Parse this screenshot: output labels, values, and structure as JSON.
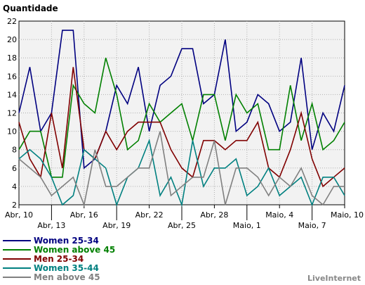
{
  "chart_data": {
    "type": "line",
    "title": "",
    "xlabel": "",
    "ylabel": "Quantidade",
    "ylim": [
      2,
      22
    ],
    "yticks": [
      2,
      4,
      6,
      8,
      10,
      12,
      14,
      16,
      18,
      20,
      22
    ],
    "x_count": 31,
    "x_ticks": [
      {
        "label": "Abr, 10",
        "index": 0,
        "row": 1
      },
      {
        "label": "Abr, 13",
        "index": 3,
        "row": 2
      },
      {
        "label": "Abr, 16",
        "index": 6,
        "row": 1
      },
      {
        "label": "Abr, 19",
        "index": 9,
        "row": 2
      },
      {
        "label": "Abr, 22",
        "index": 12,
        "row": 1
      },
      {
        "label": "Abr, 25",
        "index": 15,
        "row": 2
      },
      {
        "label": "Abr, 28",
        "index": 18,
        "row": 1
      },
      {
        "label": "Maio, 1",
        "index": 21,
        "row": 2
      },
      {
        "label": "Maio, 4",
        "index": 24,
        "row": 1
      },
      {
        "label": "Maio, 7",
        "index": 27,
        "row": 2
      },
      {
        "label": "Maio, 10",
        "index": 30,
        "row": 1
      }
    ],
    "grid": true,
    "legend_position": "bottom-left",
    "series": [
      {
        "name": "Women 25-34",
        "color": "#000080",
        "values": [
          12,
          17,
          10,
          12,
          21,
          21,
          6,
          7,
          10,
          15,
          13,
          17,
          10,
          15,
          16,
          19,
          19,
          13,
          14,
          20,
          10,
          11,
          14,
          13,
          10,
          11,
          18,
          8,
          12,
          10,
          15
        ]
      },
      {
        "name": "Women above 45",
        "color": "#008000",
        "values": [
          8,
          10,
          10,
          5,
          5,
          15,
          13,
          12,
          18,
          14,
          8,
          9,
          13,
          11,
          12,
          13,
          9,
          14,
          14,
          9,
          14,
          12,
          13,
          8,
          8,
          15,
          9,
          13,
          8,
          9,
          11
        ]
      },
      {
        "name": "Men 25-34",
        "color": "#800000",
        "values": [
          11,
          7,
          5,
          12,
          6,
          17,
          8,
          7,
          10,
          8,
          10,
          11,
          11,
          11,
          8,
          6,
          5,
          9,
          9,
          8,
          9,
          9,
          11,
          6,
          5,
          8,
          12,
          7,
          4,
          5,
          6
        ]
      },
      {
        "name": "Women 35-44",
        "color": "#008080",
        "values": [
          7,
          8,
          7,
          5,
          2,
          3,
          8,
          7,
          6,
          2,
          5,
          6,
          9,
          3,
          5,
          2,
          9,
          4,
          6,
          6,
          7,
          3,
          4,
          6,
          3,
          4,
          5,
          2,
          5,
          5,
          3
        ]
      },
      {
        "name": "Men above 45",
        "color": "#808080",
        "values": [
          7,
          6,
          5,
          3,
          4,
          5,
          2,
          8,
          4,
          4,
          5,
          6,
          6,
          10,
          3,
          4,
          5,
          5,
          9,
          2,
          6,
          6,
          5,
          3,
          5,
          4,
          6,
          3,
          2,
          4,
          4
        ]
      }
    ]
  },
  "footer": {
    "brand": "LiveInternet"
  }
}
